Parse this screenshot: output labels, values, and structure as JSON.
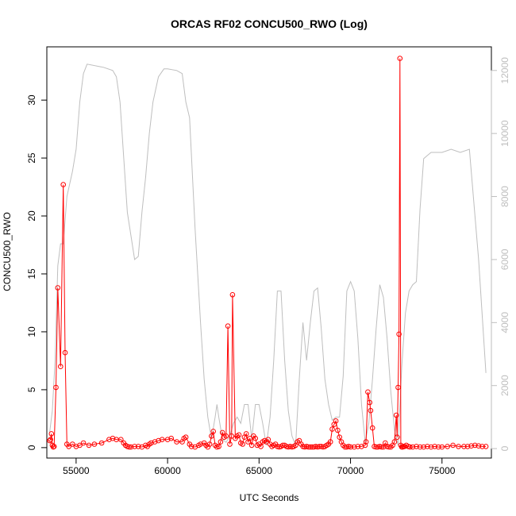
{
  "chart_data": {
    "type": "line",
    "title": "ORCAS RF02 CONCU500_RWO (Log)",
    "xlabel": "UTC Seconds",
    "ylabel": "CONCU500_RWO",
    "xlim": [
      53400,
      77700
    ],
    "ylim": [
      -0.9,
      34.6
    ],
    "y2lim": [
      -300,
      12750
    ],
    "x_ticks": [
      55000,
      60000,
      65000,
      70000,
      75000
    ],
    "y_ticks": [
      0,
      5,
      10,
      15,
      20,
      25,
      30
    ],
    "y2_ticks": [
      0,
      2000,
      4000,
      6000,
      8000,
      10000,
      12000
    ],
    "colors": {
      "primary": "#ff0000",
      "secondary": "#bebebe",
      "axis": "#000000"
    },
    "series": [
      {
        "role": "primary",
        "marker": "open-circle",
        "x": [
          53550,
          53600,
          53650,
          53700,
          53750,
          53800,
          53900,
          54000,
          54150,
          54300,
          54400,
          54500,
          54600,
          54800,
          55000,
          55200,
          55400,
          55700,
          56000,
          56400,
          56800,
          57000,
          57200,
          57450,
          57600,
          57700,
          57800,
          57900,
          58000,
          58200,
          58400,
          58600,
          58800,
          58900,
          59000,
          59100,
          59300,
          59500,
          59700,
          60000,
          60200,
          60500,
          60800,
          60900,
          61000,
          61200,
          61300,
          61500,
          61700,
          61800,
          62000,
          62100,
          62200,
          62300,
          62400,
          62500,
          62600,
          62700,
          62800,
          62900,
          63000,
          63100,
          63200,
          63300,
          63400,
          63500,
          63550,
          63700,
          63800,
          63900,
          64000,
          64100,
          64200,
          64300,
          64400,
          64500,
          64600,
          64700,
          64800,
          64900,
          65000,
          65100,
          65200,
          65300,
          65400,
          65500,
          65600,
          65700,
          65800,
          65900,
          66000,
          66100,
          66200,
          66300,
          66400,
          66500,
          66600,
          66700,
          66800,
          66900,
          67000,
          67100,
          67200,
          67300,
          67400,
          67500,
          67600,
          67700,
          67800,
          67900,
          68000,
          68100,
          68200,
          68300,
          68400,
          68500,
          68600,
          68700,
          68800,
          68900,
          69000,
          69100,
          69200,
          69300,
          69400,
          69500,
          69600,
          69700,
          69800,
          69900,
          70000,
          70200,
          70400,
          70600,
          70800,
          70850,
          70950,
          71050,
          71100,
          71200,
          71300,
          71400,
          71500,
          71600,
          71700,
          71800,
          71900,
          72000,
          72100,
          72200,
          72300,
          72400,
          72500,
          72550,
          72600,
          72650,
          72700,
          72750,
          72800,
          72850,
          72900,
          72950,
          73050,
          73150,
          73250,
          73400,
          73600,
          73800,
          74000,
          74200,
          74400,
          74600,
          74800,
          75000,
          75300,
          75600,
          75900,
          76200,
          76400,
          76600,
          76800,
          77000,
          77200,
          77400
        ],
        "y": [
          0.6,
          0.7,
          1.2,
          0.2,
          0.05,
          0.1,
          5.2,
          13.8,
          7.0,
          22.7,
          8.2,
          0.3,
          0.1,
          0.3,
          0.1,
          0.2,
          0.4,
          0.2,
          0.3,
          0.4,
          0.7,
          0.8,
          0.7,
          0.7,
          0.4,
          0.2,
          0.1,
          0.05,
          0.05,
          0.1,
          0.1,
          0.05,
          0.2,
          0.1,
          0.3,
          0.4,
          0.5,
          0.6,
          0.7,
          0.7,
          0.8,
          0.5,
          0.5,
          0.8,
          0.9,
          0.3,
          0.1,
          0.05,
          0.2,
          0.3,
          0.4,
          0.2,
          0.05,
          0.3,
          1.0,
          1.4,
          0.2,
          0.05,
          0.1,
          0.5,
          1.3,
          0.9,
          1.0,
          10.5,
          0.3,
          1.0,
          13.2,
          0.8,
          1.0,
          1.1,
          0.4,
          0.3,
          0.9,
          1.2,
          0.5,
          0.8,
          0.2,
          1.0,
          0.8,
          0.2,
          0.3,
          0.1,
          0.5,
          0.6,
          0.5,
          0.7,
          0.3,
          0.1,
          0.2,
          0.3,
          0.1,
          0.05,
          0.1,
          0.2,
          0.2,
          0.1,
          0.05,
          0.1,
          0.05,
          0.1,
          0.2,
          0.5,
          0.6,
          0.3,
          0.1,
          0.05,
          0.1,
          0.05,
          0.05,
          0.05,
          0.05,
          0.1,
          0.05,
          0.1,
          0.1,
          0.05,
          0.1,
          0.2,
          0.3,
          0.5,
          1.6,
          2.0,
          2.3,
          1.5,
          0.9,
          0.5,
          0.2,
          0.05,
          0.05,
          0.1,
          0.05,
          0.05,
          0.1,
          0.1,
          0.2,
          0.5,
          4.8,
          3.9,
          3.2,
          1.7,
          0.1,
          0.05,
          0.05,
          0.1,
          0.05,
          0.05,
          0.4,
          0.1,
          0.05,
          0.05,
          0.2,
          0.5,
          2.8,
          0.9,
          5.2,
          9.8,
          33.6,
          0.2,
          0.05,
          0.05,
          0.1,
          0.1,
          0.2,
          0.1,
          0.05,
          0.05,
          0.1,
          0.05,
          0.05,
          0.1,
          0.05,
          0.1,
          0.05,
          0.05,
          0.1,
          0.2,
          0.1,
          0.1,
          0.1,
          0.15,
          0.2,
          0.15,
          0.1,
          0.1
        ]
      },
      {
        "role": "secondary-axis",
        "marker": "none",
        "x": [
          53550,
          53700,
          53850,
          54000,
          54150,
          54300,
          54500,
          54800,
          55000,
          55200,
          55400,
          55600,
          56500,
          57000,
          57200,
          57400,
          57800,
          58200,
          58400,
          58600,
          58800,
          59000,
          59200,
          59500,
          59800,
          60000,
          60500,
          60800,
          61000,
          61200,
          61500,
          61800,
          62000,
          62200,
          62400,
          62600,
          62700,
          62800,
          63000,
          63200,
          63400,
          63600,
          63800,
          64000,
          64200,
          64400,
          64600,
          64800,
          65000,
          65200,
          65400,
          65600,
          65800,
          66000,
          66200,
          66400,
          66600,
          66800,
          67000,
          67200,
          67400,
          67600,
          67800,
          68000,
          68200,
          68400,
          68600,
          68800,
          69000,
          69200,
          69400,
          69600,
          69800,
          70000,
          70200,
          70400,
          70600,
          70800,
          71000,
          71200,
          71400,
          71600,
          71800,
          72000,
          72200,
          72400,
          72600,
          72800,
          73000,
          73200,
          73400,
          73600,
          73800,
          74000,
          74200,
          74400,
          74600,
          75000,
          75500,
          76000,
          76500,
          77000,
          77400
        ],
        "y": [
          500,
          1200,
          2800,
          5800,
          6500,
          6500,
          8000,
          8800,
          9500,
          11000,
          11900,
          12200,
          12100,
          12000,
          11800,
          11000,
          7500,
          6000,
          6100,
          7500,
          8600,
          10000,
          11000,
          11800,
          12050,
          12050,
          12000,
          11900,
          11000,
          10500,
          7000,
          4000,
          2200,
          1000,
          300,
          1000,
          1400,
          1000,
          300,
          200,
          400,
          800,
          1000,
          800,
          1400,
          1400,
          300,
          1400,
          1400,
          800,
          100,
          1000,
          2800,
          5000,
          5000,
          2800,
          1200,
          400,
          100,
          2200,
          4000,
          2800,
          4000,
          5000,
          5100,
          3800,
          2200,
          1400,
          900,
          1000,
          1000,
          2300,
          5000,
          5300,
          5000,
          3500,
          1400,
          200,
          800,
          2200,
          3800,
          5200,
          4800,
          3500,
          1800,
          600,
          100,
          2600,
          4300,
          5000,
          5200,
          5300,
          7600,
          9200,
          9300,
          9400,
          9400,
          9400,
          9500,
          9400,
          9500,
          6000,
          2400
        ]
      }
    ]
  }
}
